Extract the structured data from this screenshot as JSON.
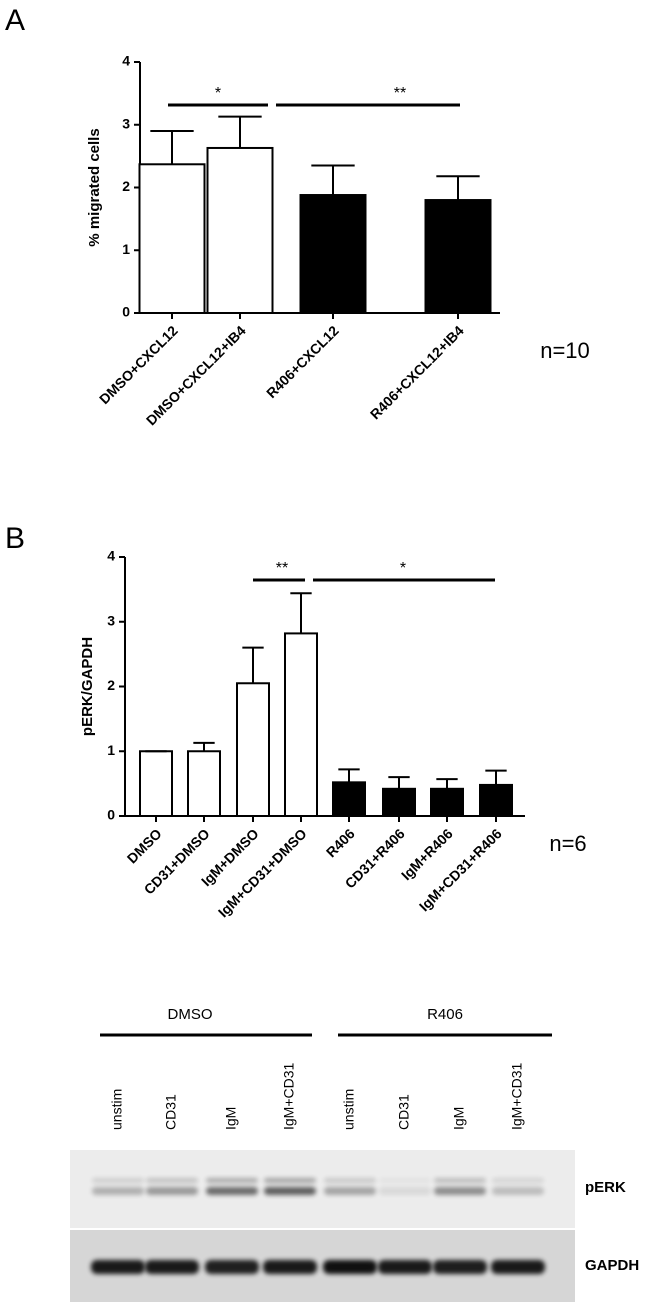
{
  "chart_data": [
    {
      "type": "bar",
      "panel": "A",
      "ylabel": "% migrated cells",
      "categories": [
        "DMSO+CXCL12",
        "DMSO+CXCL12+IB4",
        "R406+CXCL12",
        "R406+CXCL12+IB4"
      ],
      "values": [
        2.37,
        2.63,
        1.88,
        1.8
      ],
      "errors": [
        0.53,
        0.5,
        0.47,
        0.38
      ],
      "colors": [
        "#ffffff",
        "#ffffff",
        "#000000",
        "#000000"
      ],
      "ylim": [
        0,
        4
      ],
      "yticks": [
        0,
        1,
        2,
        3,
        4
      ],
      "annotations": [
        "*",
        "**",
        "n=10"
      ]
    },
    {
      "type": "bar",
      "panel": "B",
      "ylabel": "pERK/GAPDH",
      "categories": [
        "DMSO",
        "CD31+DMSO",
        "IgM+DMSO",
        "IgM+CD31+DMSO",
        "R406",
        "CD31+R406",
        "IgM+R406",
        "IgM+CD31+R406"
      ],
      "values": [
        1.0,
        1.0,
        2.05,
        2.82,
        0.52,
        0.42,
        0.42,
        0.48
      ],
      "errors": [
        0,
        0.13,
        0.55,
        0.62,
        0.2,
        0.18,
        0.15,
        0.22
      ],
      "colors": [
        "#ffffff",
        "#ffffff",
        "#ffffff",
        "#ffffff",
        "#000000",
        "#000000",
        "#000000",
        "#000000"
      ],
      "ylim": [
        0,
        4
      ],
      "yticks": [
        0,
        1,
        2,
        3,
        4
      ],
      "annotations": [
        "**",
        "*",
        "n=6"
      ]
    }
  ],
  "blot": {
    "groups": [
      "DMSO",
      "R406"
    ],
    "lanes": [
      "unstim",
      "CD31",
      "IgM",
      "IgM+CD31",
      "unstim",
      "CD31",
      "IgM",
      "IgM+CD31"
    ],
    "rows": [
      "pERK",
      "GAPDH"
    ]
  }
}
